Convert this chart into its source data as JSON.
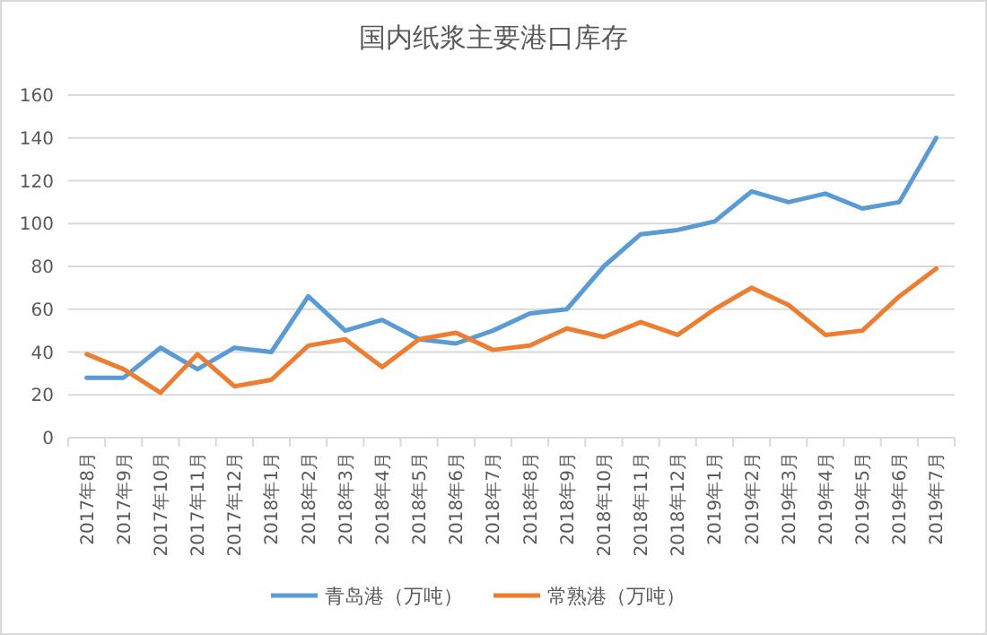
{
  "chart_data": {
    "type": "line",
    "title": "国内纸浆主要港口库存",
    "categories": [
      "2017年8月",
      "2017年9月",
      "2017年10月",
      "2017年11月",
      "2017年12月",
      "2018年1月",
      "2018年2月",
      "2018年3月",
      "2018年4月",
      "2018年5月",
      "2018年6月",
      "2018年7月",
      "2018年8月",
      "2018年9月",
      "2018年10月",
      "2018年11月",
      "2018年12月",
      "2019年1月",
      "2019年2月",
      "2019年3月",
      "2019年4月",
      "2019年5月",
      "2019年6月",
      "2019年7月"
    ],
    "series": [
      {
        "name": "青岛港（万吨）",
        "color": "#5b9bd5",
        "values": [
          28,
          28,
          42,
          32,
          42,
          40,
          66,
          50,
          55,
          46,
          44,
          50,
          58,
          60,
          80,
          95,
          97,
          101,
          115,
          110,
          114,
          107,
          110,
          140
        ]
      },
      {
        "name": "常熟港（万吨）",
        "color": "#ed7d31",
        "values": [
          39,
          32,
          21,
          39,
          24,
          27,
          43,
          46,
          33,
          46,
          49,
          41,
          43,
          51,
          47,
          54,
          48,
          60,
          70,
          62,
          48,
          50,
          66,
          79
        ]
      }
    ],
    "ylim": [
      0,
      160
    ],
    "yticks": [
      0,
      20,
      40,
      60,
      80,
      100,
      120,
      140,
      160
    ],
    "grid": "y",
    "legend": "bottom",
    "marker": "none",
    "line_style": "solid"
  }
}
